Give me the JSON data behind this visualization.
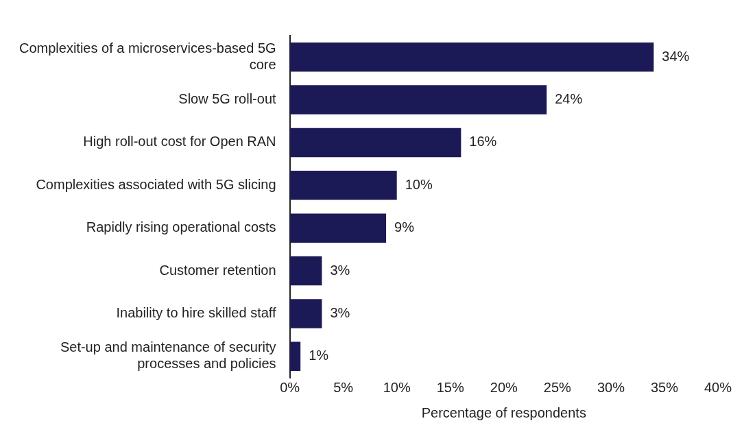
{
  "chart_data": {
    "type": "bar",
    "orientation": "horizontal",
    "xlabel": "Percentage of respondents",
    "categories": [
      "Complexities of a microservices-based 5G core",
      "Slow 5G roll-out",
      "High roll-out cost for Open RAN",
      "Complexities associated with 5G slicing",
      "Rapidly rising operational costs",
      "Customer retention",
      "Inability to hire skilled staff",
      "Set-up and maintenance of security processes and policies"
    ],
    "values": [
      34,
      24,
      16,
      10,
      9,
      3,
      3,
      1
    ],
    "value_labels": [
      "34%",
      "24%",
      "16%",
      "10%",
      "9%",
      "3%",
      "3%",
      "1%"
    ],
    "color": "#1c1a56",
    "xlim": [
      0,
      40
    ],
    "xticks": [
      {
        "value": 0,
        "label": "0%"
      },
      {
        "value": 5,
        "label": "5%"
      },
      {
        "value": 10,
        "label": "10%"
      },
      {
        "value": 15,
        "label": "15%"
      },
      {
        "value": 20,
        "label": "20%"
      },
      {
        "value": 25,
        "label": "25%"
      },
      {
        "value": 30,
        "label": "30%"
      },
      {
        "value": 35,
        "label": "35%"
      },
      {
        "value": 40,
        "label": "40%"
      }
    ],
    "grid": false,
    "legend": false
  }
}
